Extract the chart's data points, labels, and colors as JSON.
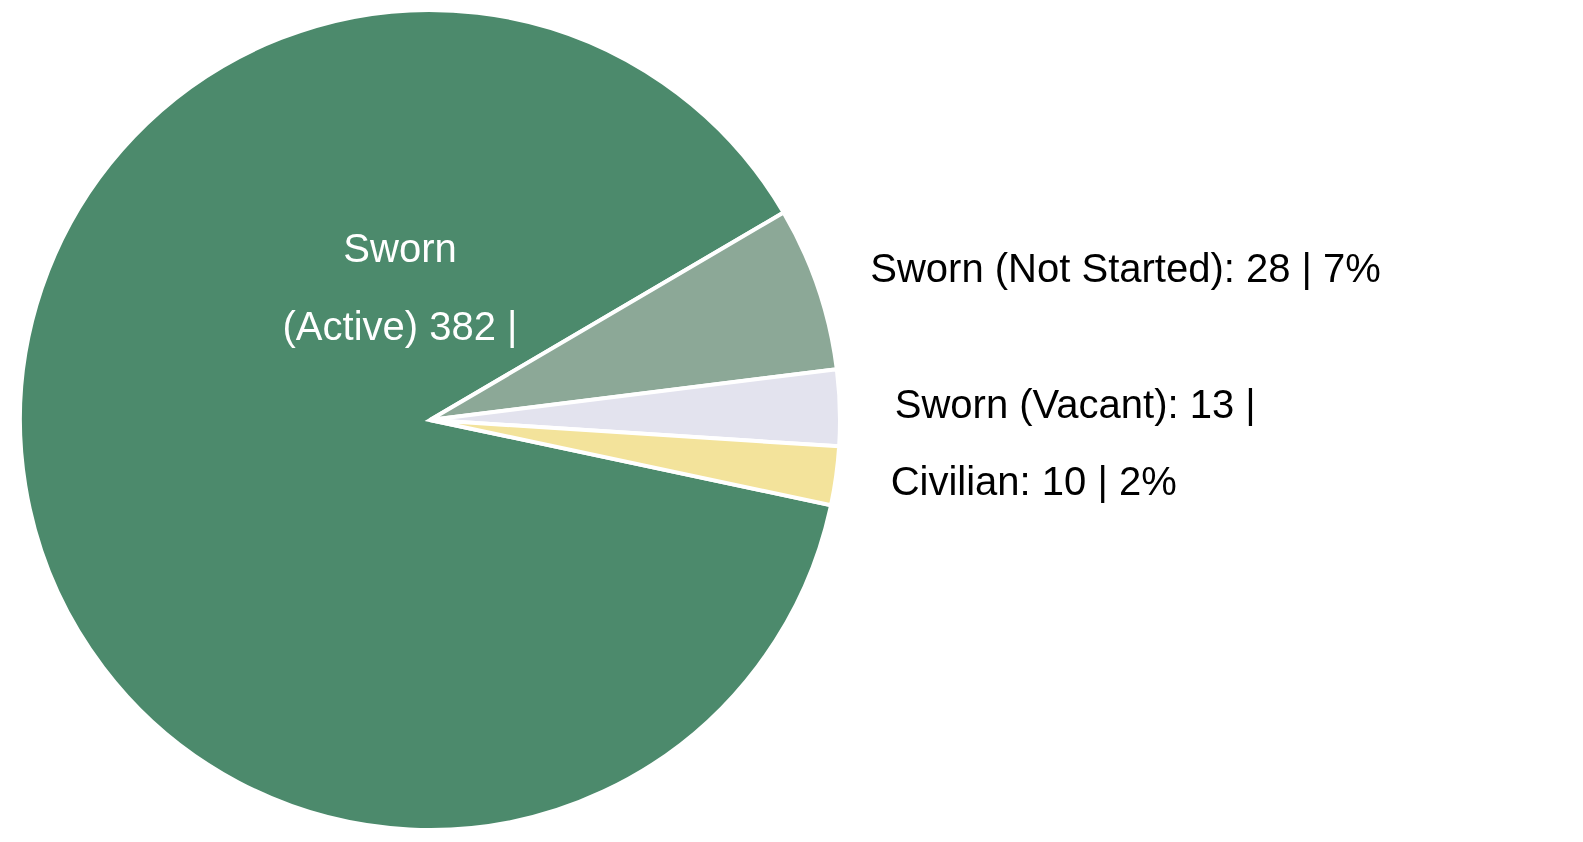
{
  "chart_data": {
    "type": "pie",
    "categories": [
      "Sworn (Active)",
      "Sworn (Not Started)",
      "Sworn (Vacant)",
      "Civilian"
    ],
    "values": [
      382,
      28,
      13,
      10
    ],
    "colors": [
      "#4c8a6c",
      "#8ca897",
      "#e3e3ee",
      "#f3e39b"
    ],
    "value_labels": [
      "382 |",
      "28 | 7%",
      "13 |",
      "10 | 2%"
    ]
  }
}
